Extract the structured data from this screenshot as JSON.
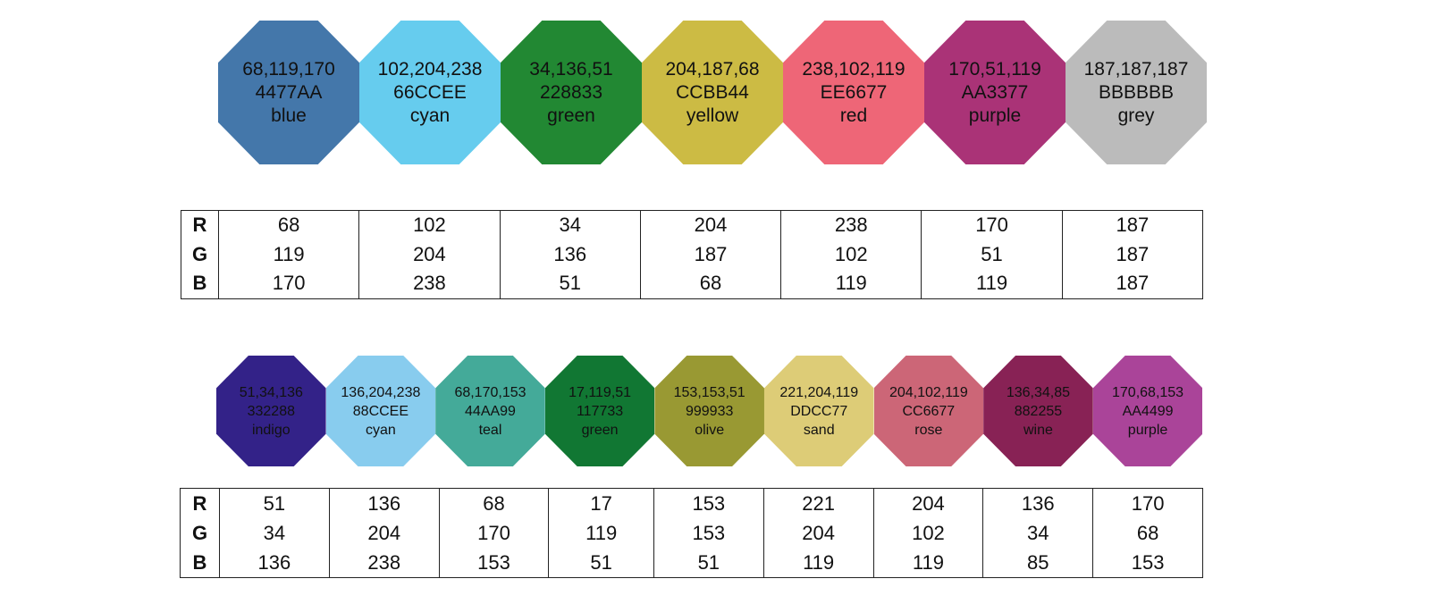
{
  "palette_bright": {
    "swatches": [
      {
        "rgb": "68,119,170",
        "hex": "4477AA",
        "name": "blue",
        "color": "#4477AA"
      },
      {
        "rgb": "102,204,238",
        "hex": "66CCEE",
        "name": "cyan",
        "color": "#66CCEE"
      },
      {
        "rgb": "34,136,51",
        "hex": "228833",
        "name": "green",
        "color": "#228833"
      },
      {
        "rgb": "204,187,68",
        "hex": "CCBB44",
        "name": "yellow",
        "color": "#CCBB44"
      },
      {
        "rgb": "238,102,119",
        "hex": "EE6677",
        "name": "red",
        "color": "#EE6677"
      },
      {
        "rgb": "170,51,119",
        "hex": "AA3377",
        "name": "purple",
        "color": "#AA3377"
      },
      {
        "rgb": "187,187,187",
        "hex": "BBBBBB",
        "name": "grey",
        "color": "#BBBBBB"
      }
    ],
    "table": {
      "labels": [
        "R",
        "G",
        "B"
      ],
      "rows": [
        [
          "68",
          "102",
          "34",
          "204",
          "238",
          "170",
          "187"
        ],
        [
          "119",
          "204",
          "136",
          "187",
          "102",
          "51",
          "187"
        ],
        [
          "170",
          "238",
          "51",
          "68",
          "119",
          "119",
          "187"
        ]
      ]
    }
  },
  "palette_muted": {
    "swatches": [
      {
        "rgb": "51,34,136",
        "hex": "332288",
        "name": "indigo",
        "color": "#332288"
      },
      {
        "rgb": "136,204,238",
        "hex": "88CCEE",
        "name": "cyan",
        "color": "#88CCEE"
      },
      {
        "rgb": "68,170,153",
        "hex": "44AA99",
        "name": "teal",
        "color": "#44AA99"
      },
      {
        "rgb": "17,119,51",
        "hex": "117733",
        "name": "green",
        "color": "#117733"
      },
      {
        "rgb": "153,153,51",
        "hex": "999933",
        "name": "olive",
        "color": "#999933"
      },
      {
        "rgb": "221,204,119",
        "hex": "DDCC77",
        "name": "sand",
        "color": "#DDCC77"
      },
      {
        "rgb": "204,102,119",
        "hex": "CC6677",
        "name": "rose",
        "color": "#CC6677"
      },
      {
        "rgb": "136,34,85",
        "hex": "882255",
        "name": "wine",
        "color": "#882255"
      },
      {
        "rgb": "170,68,153",
        "hex": "AA4499",
        "name": "purple",
        "color": "#AA4499"
      }
    ],
    "table": {
      "labels": [
        "R",
        "G",
        "B"
      ],
      "rows": [
        [
          "51",
          "136",
          "68",
          "17",
          "153",
          "221",
          "204",
          "136",
          "170"
        ],
        [
          "34",
          "204",
          "170",
          "119",
          "153",
          "204",
          "102",
          "34",
          "68"
        ],
        [
          "136",
          "238",
          "153",
          "51",
          "51",
          "119",
          "119",
          "85",
          "153"
        ]
      ]
    }
  }
}
